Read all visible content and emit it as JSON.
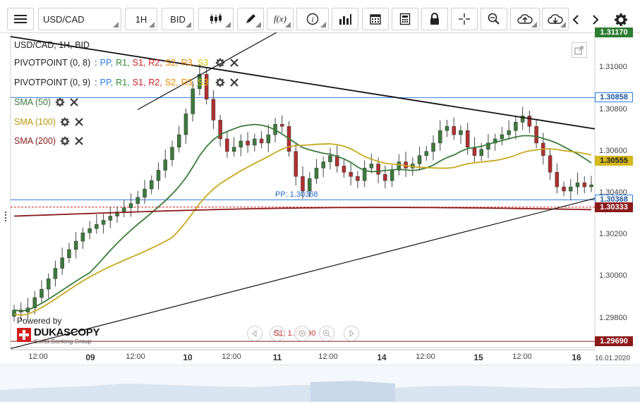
{
  "toolbar": {
    "menu_icon": "hamburger-icon",
    "symbol": "USD/CAD",
    "timeframe": "1H",
    "side": "BID",
    "tools": [
      "candlestick-icon",
      "pencil-icon",
      "function-icon",
      "info-icon",
      "bar-chart-icon",
      "calendar-icon",
      "calculator-icon",
      "lock-icon",
      "crosshair-icon",
      "zoom-icon",
      "cloud-upload-icon",
      "cloud-download-icon",
      "chevron-left-icon",
      "chevron-right-icon",
      "gear-icon"
    ],
    "fx_label": "f(x)"
  },
  "legend": {
    "title": "USD/CAD, 1H, BID",
    "pivot1": {
      "name": "PIVOTPOINT (0, 8)",
      "sep": ":"
    },
    "pivot2": {
      "name": "PIVOTPOINT (0, 9)",
      "sep": ":"
    },
    "pivot_items": [
      {
        "label": "PP,",
        "color": "#2a7de1"
      },
      {
        "label": "R1,",
        "color": "#2e8b2e"
      },
      {
        "label": "S1,",
        "color": "#d12020"
      },
      {
        "label": "R2,",
        "color": "#d12020"
      },
      {
        "label": "S2,",
        "color": "#ee8800"
      },
      {
        "label": "R3,",
        "color": "#ee8800"
      },
      {
        "label": "S3",
        "color": "#d6c400"
      }
    ],
    "sma50": {
      "label": "SMA (50)",
      "color": "#3a7a3a"
    },
    "sma100": {
      "label": "SMA (100)",
      "color": "#c8a820"
    },
    "sma200": {
      "label": "SMA (200)",
      "color": "#8b1a1a"
    }
  },
  "price_tags": [
    {
      "text": "1.31170",
      "bg": "#2e7d32",
      "fg": "#fff"
    },
    {
      "text": "1.30858",
      "bg": "#fff",
      "fg": "#1a55a0",
      "border": "#2a7de1"
    },
    {
      "text": "1.30555",
      "bg": "#d4b81c",
      "fg": "#222"
    },
    {
      "text": "1.30368",
      "bg": "#fff",
      "fg": "#1a55a0",
      "border": "#2a7de1"
    },
    {
      "text": "1.30333",
      "bg": "#8b1a1a",
      "fg": "#fff"
    },
    {
      "text": "1.29690",
      "bg": "#8b1a1a",
      "fg": "#fff"
    }
  ],
  "pp_label": "PP: 1.30368",
  "s1_label": "S1: 1.29690",
  "powered_by": "Powered by",
  "brand_name": "DUKASCOPY",
  "brand_tagline": "Swiss Banking Group",
  "date_stamp": "16.01.2020",
  "chart_data": {
    "type": "candlestick",
    "title": "USD/CAD, 1H, BID",
    "ylim": [
      1.2966,
      1.3117
    ],
    "yticks": [
      "1.31000",
      "1.30800",
      "1.30600",
      "1.30400",
      "1.30200",
      "1.30000",
      "1.29800"
    ],
    "x_ticks": [
      "12:00",
      "09",
      "12:00",
      "10",
      "12:00",
      "11",
      "12:00",
      "14",
      "12:00",
      "15",
      "12:00",
      "16"
    ],
    "grid": false,
    "pivot_pp": 1.30368,
    "pivot_s1": 1.2969,
    "level_1_30858": 1.30858,
    "sma50_last": 1.30555,
    "sma200_last": 1.30333,
    "candles_close": [
      1.2984,
      1.2983,
      1.2985,
      1.299,
      1.2994,
      1.2999,
      1.3004,
      1.3009,
      1.3013,
      1.3017,
      1.3021,
      1.3023,
      1.3025,
      1.3027,
      1.3029,
      1.3031,
      1.3033,
      1.3035,
      1.3038,
      1.3042,
      1.3046,
      1.3051,
      1.3056,
      1.3062,
      1.3068,
      1.3078,
      1.309,
      1.3097,
      1.3085,
      1.3075,
      1.3066,
      1.306,
      1.3062,
      1.3065,
      1.3063,
      1.3066,
      1.3064,
      1.3068,
      1.3073,
      1.3072,
      1.306,
      1.3048,
      1.3041,
      1.3047,
      1.3052,
      1.3055,
      1.3058,
      1.3053,
      1.305,
      1.3048,
      1.3046,
      1.3052,
      1.3054,
      1.3049,
      1.3046,
      1.3051,
      1.3055,
      1.3052,
      1.3054,
      1.3058,
      1.306,
      1.3064,
      1.307,
      1.3072,
      1.3068,
      1.307,
      1.3062,
      1.3058,
      1.3061,
      1.3064,
      1.3066,
      1.3068,
      1.307,
      1.3074,
      1.3077,
      1.3072,
      1.3064,
      1.3058,
      1.305,
      1.3043,
      1.3041,
      1.3043,
      1.3045,
      1.3043,
      1.3044
    ]
  }
}
